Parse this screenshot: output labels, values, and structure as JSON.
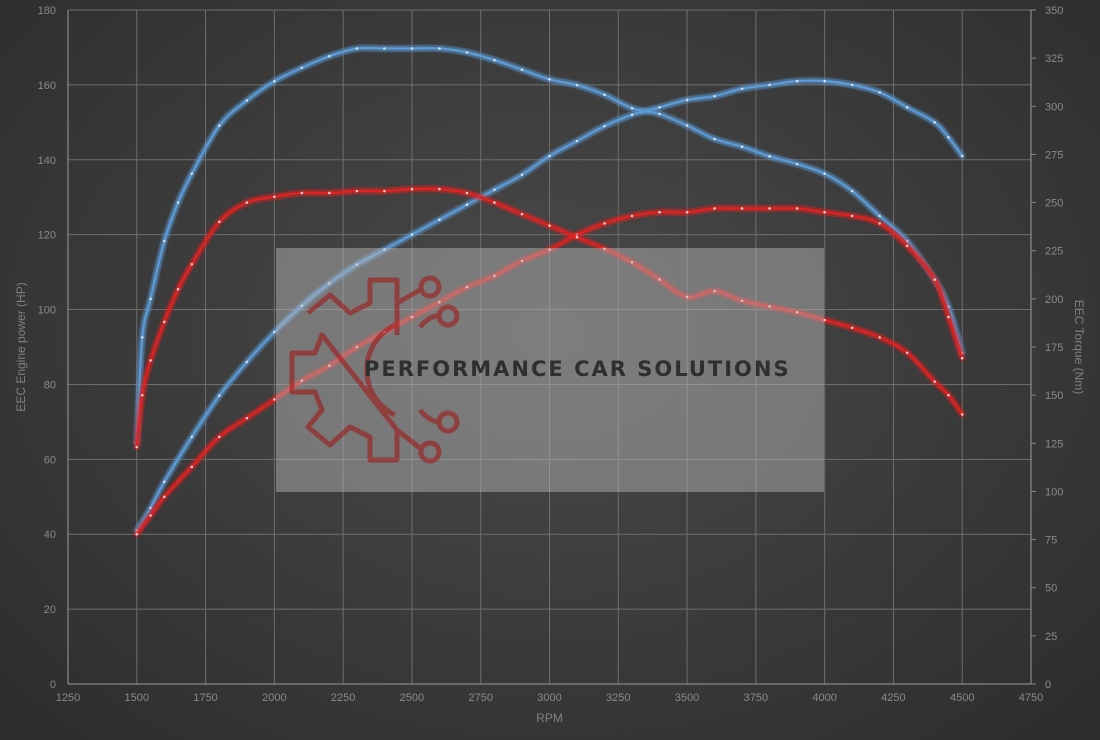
{
  "chart_data": {
    "type": "line",
    "xlabel": "RPM",
    "ylabel_left": "EEC Engine power (HP)",
    "ylabel_right": "EEC Torque (Nm)",
    "xlim": [
      1250,
      4750
    ],
    "xticks": [
      1250,
      1500,
      1750,
      2000,
      2250,
      2500,
      2750,
      3000,
      3250,
      3500,
      3750,
      4000,
      4250,
      4500,
      4750
    ],
    "ylim_left": [
      0,
      180
    ],
    "yticks_left": [
      0,
      20,
      40,
      60,
      80,
      100,
      120,
      140,
      160,
      180
    ],
    "ylim_right": [
      0,
      350
    ],
    "yticks_right": [
      0,
      25,
      50,
      75,
      100,
      125,
      150,
      175,
      200,
      225,
      250,
      275,
      300,
      325,
      350
    ],
    "grid": true,
    "series": [
      {
        "axis": "left",
        "color": "#5b9bd5",
        "x": [
          1500,
          1550,
          1600,
          1700,
          1800,
          1900,
          2000,
          2100,
          2200,
          2300,
          2400,
          2500,
          2600,
          2700,
          2800,
          2900,
          3000,
          3100,
          3200,
          3300,
          3400,
          3500,
          3600,
          3700,
          3800,
          3900,
          4000,
          4100,
          4200,
          4300,
          4400,
          4450,
          4500
        ],
        "y": [
          41,
          47,
          54,
          66,
          77,
          86,
          94,
          101,
          107,
          112,
          116,
          120,
          124,
          128,
          132,
          136,
          141,
          145,
          149,
          152,
          154,
          156,
          157,
          159,
          160,
          161,
          161,
          160,
          158,
          154,
          150,
          146,
          141
        ]
      },
      {
        "axis": "right",
        "color": "#5b9bd5",
        "x": [
          1500,
          1520,
          1550,
          1600,
          1650,
          1700,
          1800,
          1900,
          2000,
          2100,
          2200,
          2300,
          2400,
          2500,
          2600,
          2700,
          2800,
          2900,
          3000,
          3100,
          3200,
          3300,
          3400,
          3500,
          3600,
          3700,
          3800,
          3900,
          4000,
          4100,
          4200,
          4300,
          4400,
          4450,
          4500
        ],
        "y": [
          125,
          180,
          200,
          230,
          250,
          265,
          290,
          303,
          313,
          320,
          326,
          330,
          330,
          330,
          330,
          328,
          324,
          319,
          314,
          311,
          306,
          299,
          296,
          290,
          283,
          279,
          274,
          270,
          265,
          256,
          243,
          230,
          210,
          196,
          172
        ]
      },
      {
        "axis": "left",
        "color": "#e02020",
        "x": [
          1500,
          1550,
          1600,
          1700,
          1800,
          1900,
          2000,
          2100,
          2200,
          2300,
          2400,
          2500,
          2600,
          2700,
          2800,
          2900,
          3000,
          3100,
          3200,
          3300,
          3400,
          3500,
          3600,
          3700,
          3800,
          3900,
          4000,
          4100,
          4200,
          4300,
          4400,
          4450,
          4500
        ],
        "y": [
          40,
          45,
          50,
          58,
          66,
          71,
          76,
          81,
          85,
          90,
          94,
          98,
          102,
          106,
          109,
          113,
          116,
          120,
          123,
          125,
          126,
          126,
          127,
          127,
          127,
          127,
          126,
          125,
          123,
          117,
          108,
          98,
          87
        ]
      },
      {
        "axis": "right",
        "color": "#e02020",
        "x": [
          1500,
          1520,
          1550,
          1600,
          1650,
          1700,
          1800,
          1900,
          2000,
          2100,
          2200,
          2300,
          2400,
          2500,
          2600,
          2700,
          2800,
          2900,
          3000,
          3100,
          3200,
          3300,
          3400,
          3500,
          3600,
          3700,
          3800,
          3900,
          4000,
          4100,
          4200,
          4300,
          4400,
          4450,
          4500
        ],
        "y": [
          123,
          150,
          168,
          188,
          205,
          218,
          240,
          250,
          253,
          255,
          255,
          256,
          256,
          257,
          257,
          255,
          250,
          244,
          238,
          232,
          226,
          219,
          210,
          201,
          204,
          199,
          196,
          193,
          189,
          185,
          180,
          172,
          157,
          150,
          140
        ]
      }
    ]
  },
  "watermark": {
    "brand": "PERFORMANCE CAR SOLUTIONS",
    "logo": "gear-circuit-logo"
  }
}
